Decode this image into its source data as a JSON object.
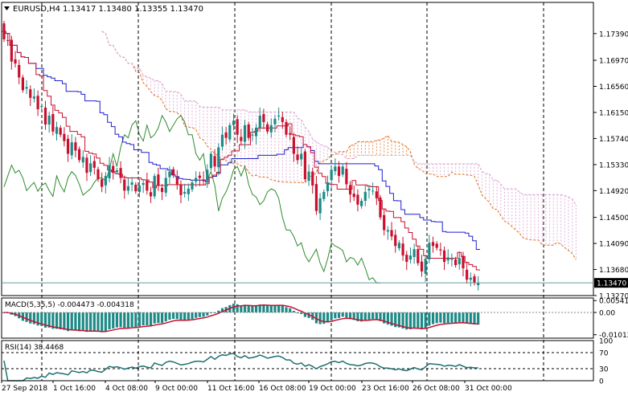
{
  "header": {
    "symbol": "EURUSD,H4",
    "ohlc": "1.13417 1.13480 1.13355 1.13470"
  },
  "colors": {
    "bull": "#1e8a87",
    "bear": "#c8102e",
    "tenkan": "#c8102e",
    "kijun": "#1f1fd0",
    "chikou": "#2e8b2e",
    "span_a": "#e07020",
    "span_b": "#d8a0d0",
    "grid": "#000000",
    "price_line": "#5f9ea0",
    "macd_hist": "#1e8a87",
    "macd_signal": "#c8102e",
    "rsi": "#1e7070"
  },
  "chart_data": [
    {
      "type": "candlestick",
      "title": "EURUSD,H4",
      "ylim": [
        1.1327,
        1.1788
      ],
      "y_ticks": [
        "1.17390",
        "1.16970",
        "1.16560",
        "1.16150",
        "1.15740",
        "1.15330",
        "1.14920",
        "1.14500",
        "1.14090",
        "1.13680",
        "1.13270"
      ],
      "x_ticks": [
        "27 Sep 2018",
        "1 Oct 16:00",
        "4 Oct 08:00",
        "9 Oct 00:00",
        "11 Oct 16:00",
        "16 Oct 08:00",
        "19 Oct 00:00",
        "23 Oct 16:00",
        "26 Oct 08:00",
        "31 Oct 00:00"
      ],
      "current_price": "1.13470",
      "close": [
        1.173,
        1.1728,
        1.1695,
        1.1692,
        1.167,
        1.165,
        1.1655,
        1.1638,
        1.164,
        1.162,
        1.1625,
        1.1596,
        1.161,
        1.1585,
        1.1592,
        1.158,
        1.157,
        1.155,
        1.1568,
        1.1555,
        1.154,
        1.1545,
        1.152,
        1.1535,
        1.1528,
        1.151,
        1.1498,
        1.1515,
        1.1532,
        1.152,
        1.1524,
        1.1512,
        1.1492,
        1.1499,
        1.1505,
        1.1491,
        1.15,
        1.1504,
        1.1492,
        1.1483,
        1.1515,
        1.15,
        1.149,
        1.1512,
        1.1522,
        1.1516,
        1.1502,
        1.1485,
        1.149,
        1.1495,
        1.1505,
        1.1512,
        1.1512,
        1.1507,
        1.1525,
        1.155,
        1.153,
        1.156,
        1.158,
        1.1575,
        1.1595,
        1.1602,
        1.158,
        1.157,
        1.1595,
        1.1575,
        1.158,
        1.1591,
        1.161,
        1.16,
        1.1585,
        1.1595,
        1.1605,
        1.161,
        1.16,
        1.158,
        1.158,
        1.155,
        1.154,
        1.155,
        1.151,
        1.1522,
        1.15,
        1.146,
        1.148,
        1.149,
        1.1505,
        1.1525,
        1.153,
        1.1515,
        1.153,
        1.1502,
        1.1486,
        1.1482,
        1.147,
        1.1476,
        1.149,
        1.1495,
        1.1492,
        1.148,
        1.145,
        1.143,
        1.143,
        1.142,
        1.1405,
        1.141,
        1.139,
        1.138,
        1.139,
        1.14,
        1.1378,
        1.1365,
        1.1385,
        1.141,
        1.1405,
        1.1402,
        1.1398,
        1.138,
        1.1387,
        1.1385,
        1.1375,
        1.1386,
        1.137,
        1.1352,
        1.1355,
        1.1347,
        1.1347
      ]
    },
    {
      "type": "line",
      "title": "MACD(5,35,5) -0.004473 -0.004318",
      "ylim": [
        -0.0117,
        0.0066
      ],
      "y_ticks": [
        "0.005415",
        "0.00",
        "-0.010129"
      ]
    },
    {
      "type": "line",
      "title": "RSI(14) 38.4468",
      "ylim": [
        0,
        100
      ],
      "y_ticks": [
        "100",
        "70",
        "30",
        "0"
      ],
      "levels": [
        70,
        30
      ]
    }
  ]
}
